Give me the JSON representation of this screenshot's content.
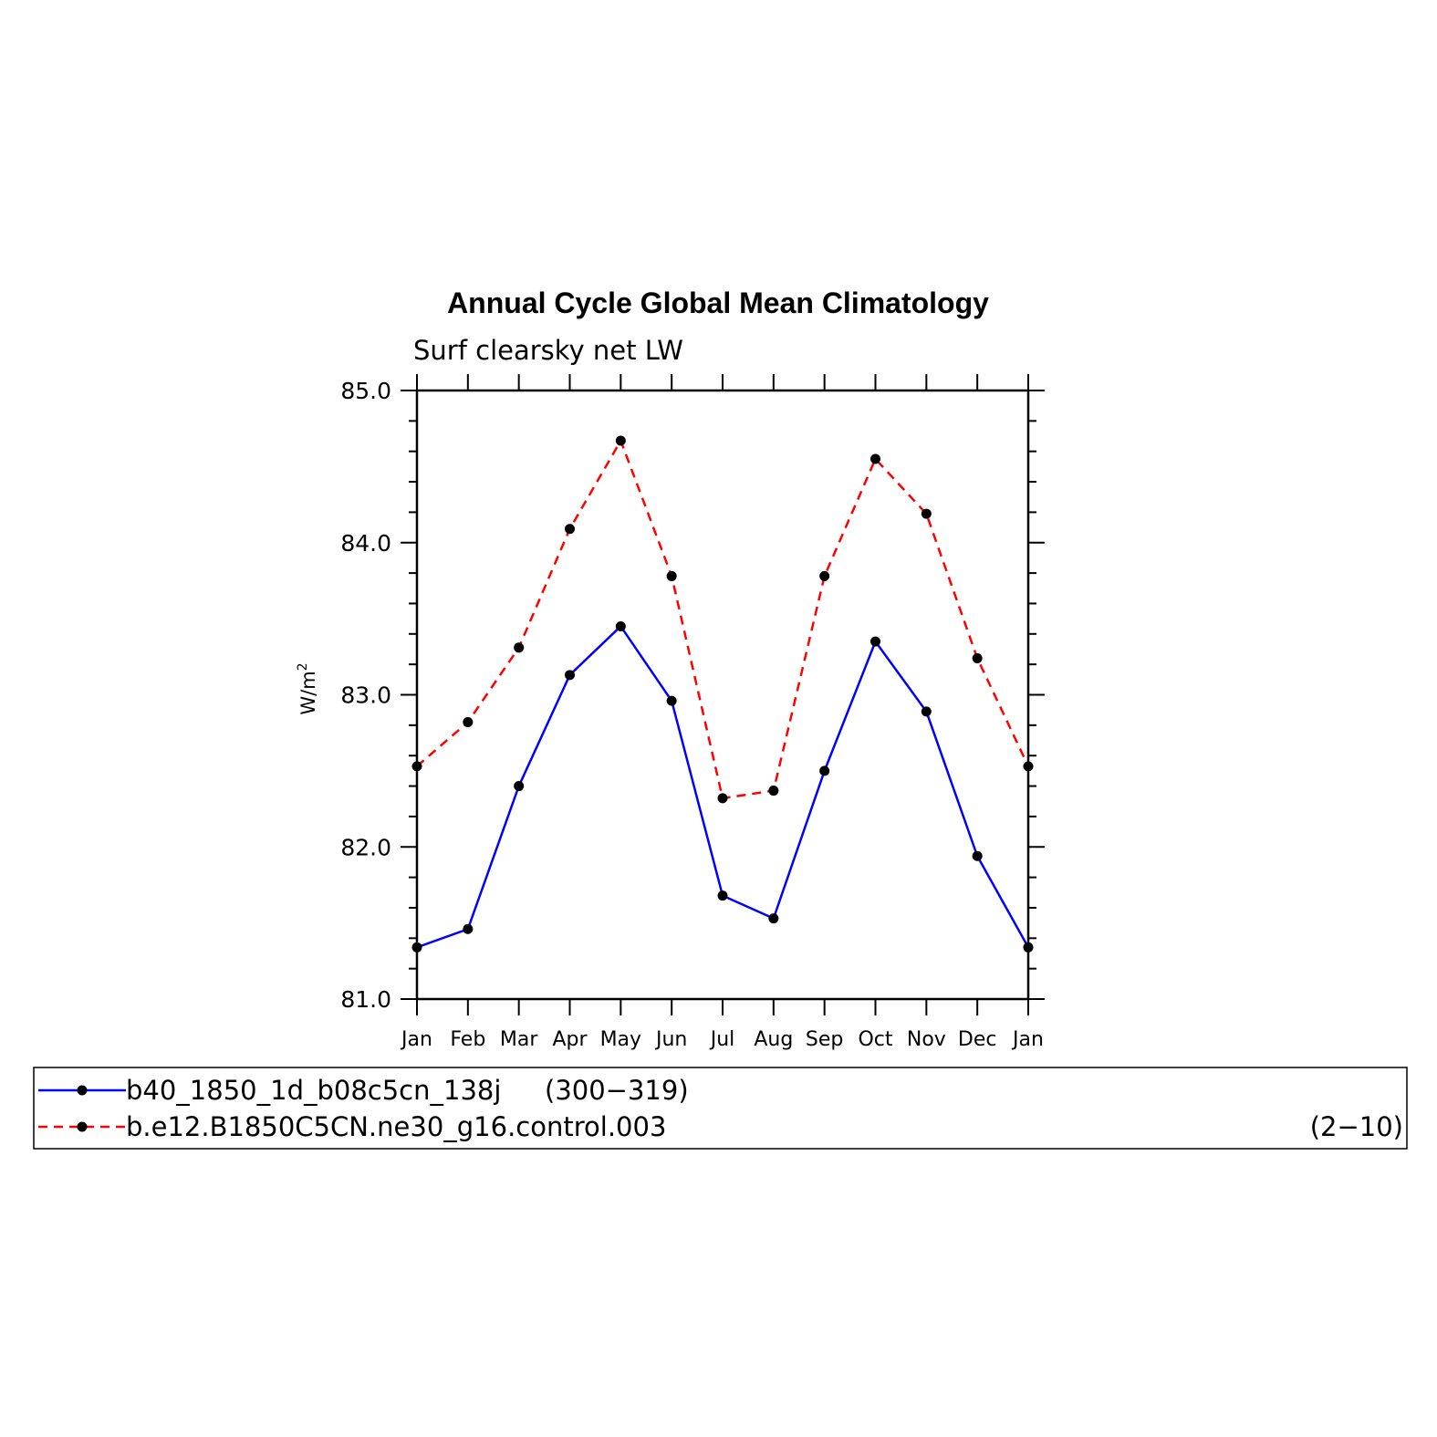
{
  "chart_data": {
    "type": "line",
    "title": "Annual Cycle Global Mean Climatology",
    "subtitle": "Surf clearsky net LW",
    "ylabel": "W/m",
    "ylabel_superscript": "2",
    "ylim": [
      81.0,
      85.0
    ],
    "y_ticks": [
      "85.0",
      "84.0",
      "83.0",
      "82.0",
      "81.0"
    ],
    "y_tick_values": [
      85.0,
      84.0,
      83.0,
      82.0,
      81.0
    ],
    "categories": [
      "Jan",
      "Feb",
      "Mar",
      "Apr",
      "May",
      "Jun",
      "Jul",
      "Aug",
      "Sep",
      "Oct",
      "Nov",
      "Dec",
      "Jan"
    ],
    "grid": false,
    "legend_position": "bottom",
    "series": [
      {
        "name": "b40_1850_1d_b08c5cn_138j (300-319)",
        "label": "b40_1850_1d_b08c5cn_138j",
        "years": "(300−319)",
        "color": "#0000ff",
        "dash": "solid",
        "values": [
          81.34,
          81.46,
          82.4,
          83.13,
          83.45,
          82.96,
          81.68,
          81.53,
          82.5,
          83.35,
          82.89,
          81.94,
          81.34
        ]
      },
      {
        "name": "b.e12.B1850C5CN.ne30_g16.control.003 (2-10)",
        "label": "b.e12.B1850C5CN.ne30_g16.control.003",
        "years": "(2−10)",
        "color": "#ff0000",
        "dash": "dashed",
        "values": [
          82.53,
          82.82,
          83.31,
          84.09,
          84.67,
          83.78,
          82.32,
          82.37,
          83.78,
          84.55,
          84.19,
          83.24,
          82.53
        ]
      }
    ]
  }
}
